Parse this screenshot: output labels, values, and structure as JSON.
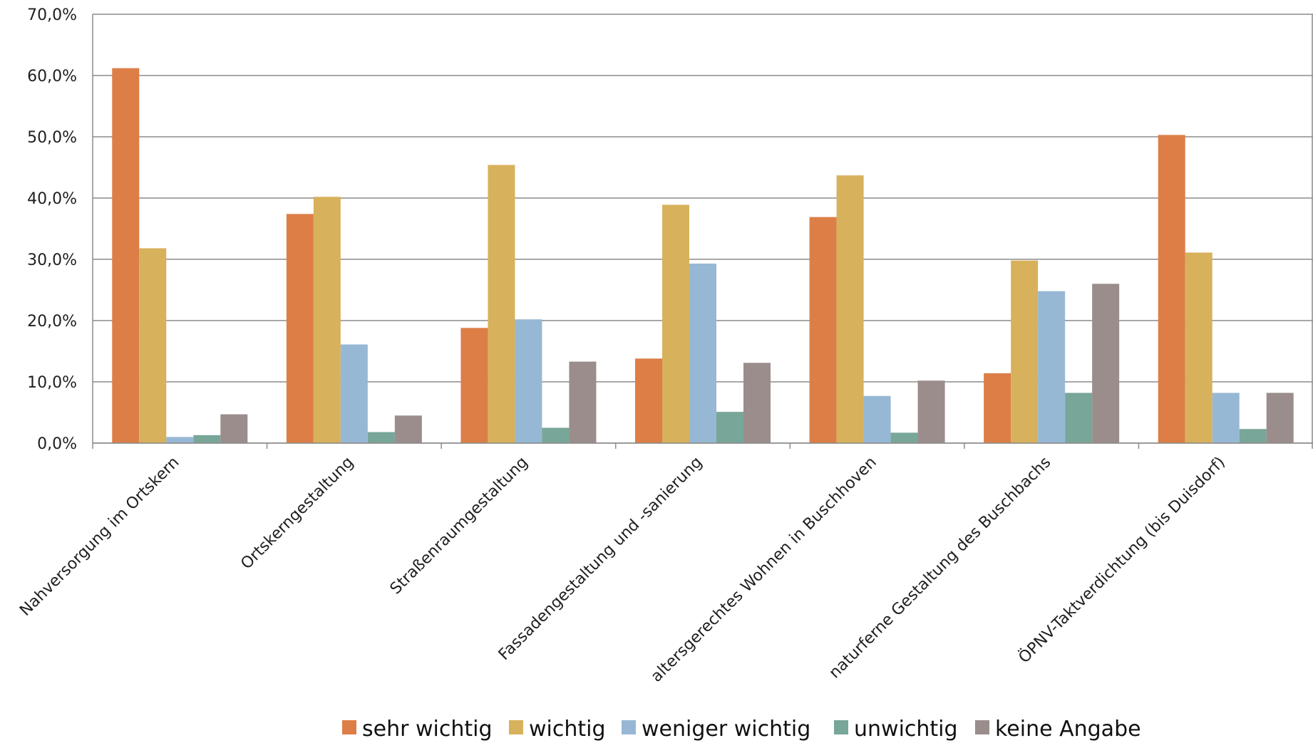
{
  "chart_data": {
    "type": "bar",
    "title": "",
    "xlabel": "",
    "ylabel": "",
    "ylim": [
      0,
      70
    ],
    "y_ticks": [
      0,
      10,
      20,
      30,
      40,
      50,
      60,
      70
    ],
    "y_tick_labels": [
      "0,0%",
      "10,0%",
      "20,0%",
      "30,0%",
      "40,0%",
      "50,0%",
      "60,0%",
      "70,0%"
    ],
    "grid": "horizontal",
    "legend_position": "bottom",
    "categories": [
      "Nahversorgung im Ortskern",
      "Ortskerngestaltung",
      "Straßenraumgestaltung",
      "Fassadengestaltung und -sanierung",
      "altersgerechtes Wohnen in Buschhoven",
      "naturferne Gestaltung des Buschbachs",
      "ÖPNV-Taktverdichtung (bis Duisdorf)"
    ],
    "series": [
      {
        "name": "sehr wichtig",
        "color": "#DD7E47",
        "values": [
          61.2,
          37.4,
          18.8,
          13.8,
          36.9,
          11.4,
          50.3
        ]
      },
      {
        "name": "wichtig",
        "color": "#D8B15C",
        "values": [
          31.8,
          40.2,
          45.4,
          38.9,
          43.7,
          29.8,
          31.1
        ]
      },
      {
        "name": "weniger wichtig",
        "color": "#97B8D4",
        "values": [
          1.0,
          16.1,
          20.2,
          29.3,
          7.7,
          24.8,
          8.2
        ]
      },
      {
        "name": "unwichtig",
        "color": "#78A698",
        "values": [
          1.3,
          1.8,
          2.5,
          5.1,
          1.7,
          8.2,
          2.3
        ]
      },
      {
        "name": "keine Angabe",
        "color": "#9A8D8B",
        "values": [
          4.7,
          4.5,
          13.3,
          13.1,
          10.2,
          26.0,
          8.2
        ]
      }
    ]
  }
}
